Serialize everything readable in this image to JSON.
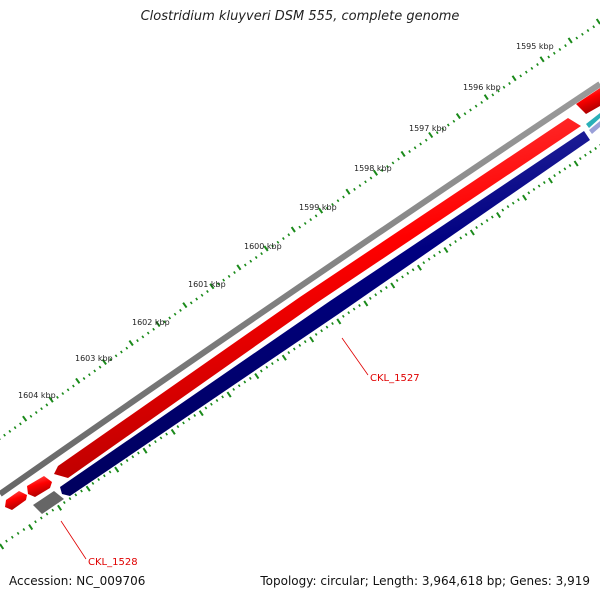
{
  "title": "Clostridium kluyveri DSM 555, complete genome",
  "accession_text": "Accession: NC_009706",
  "summary_text": "Topology: circular; Length: 3,964,618 bp; Genes: 3,919",
  "kbp_labels": [
    "1595 kbp",
    "1596 kbp",
    "1597 kbp",
    "1598 kbp",
    "1599 kbp",
    "1600 kbp",
    "1601 kbp",
    "1602 kbp",
    "1603 kbp",
    "1604 kbp"
  ],
  "gene_labels": [
    "CKL_1527",
    "CKL_1528"
  ],
  "colors": {
    "scale_ticks": "#1a8a1a",
    "backbone": "#888888",
    "forward_gene": "#ff0000",
    "reverse_gene": "#00007a",
    "pseudo_gene": "#666666",
    "label": "#e00000",
    "accent_teal": "#2ab0b8"
  }
}
